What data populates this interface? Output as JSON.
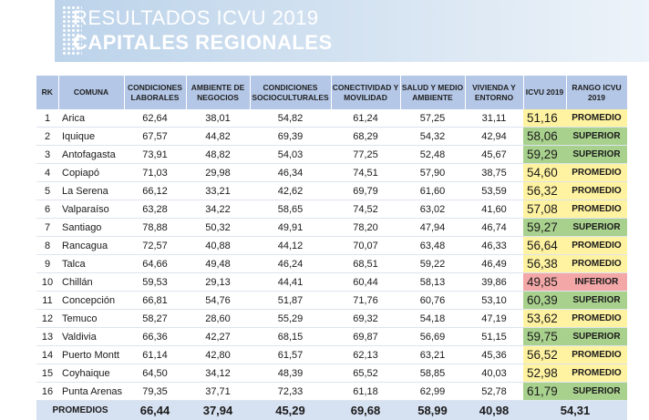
{
  "banner": {
    "title_line1": "RESULTADOS ICVU 2019",
    "title_line2": "CAPITALES REGIONALES"
  },
  "colors": {
    "header_bg": "#b4c7e7",
    "superior": "#a9d18e",
    "promedio": "#fff2a0",
    "inferior": "#f4a7a7",
    "average_row_bg": "#d6e1f1"
  },
  "table": {
    "headers": {
      "rk": "RK",
      "comuna": "COMUNA",
      "laborales": "CONDICIONES LABORALES",
      "negocios": "AMBIENTE DE NEGOCIOS",
      "socioculturales": "CONDICIONES SOCIOCULTURALES",
      "conectividad": "CONECTIVIDAD Y MOVILIDAD",
      "salud": "SALUD Y MEDIO AMBIENTE",
      "vivienda": "VIVIENDA Y ENTORNO",
      "icvu": "ICVU 2019",
      "rango": "RANGO ICVU 2019"
    },
    "rows": [
      {
        "rk": "1",
        "comuna": "Arica",
        "laborales": "62,64",
        "negocios": "38,01",
        "socio": "54,82",
        "conect": "61,24",
        "salud": "57,25",
        "vivienda": "31,11",
        "icvu": "51,16",
        "rango": "PROMEDIO"
      },
      {
        "rk": "2",
        "comuna": "Iquique",
        "laborales": "67,57",
        "negocios": "44,82",
        "socio": "69,39",
        "conect": "68,29",
        "salud": "54,32",
        "vivienda": "42,94",
        "icvu": "58,06",
        "rango": "SUPERIOR"
      },
      {
        "rk": "3",
        "comuna": "Antofagasta",
        "laborales": "73,91",
        "negocios": "48,82",
        "socio": "54,03",
        "conect": "77,25",
        "salud": "52,48",
        "vivienda": "45,67",
        "icvu": "59,29",
        "rango": "SUPERIOR"
      },
      {
        "rk": "4",
        "comuna": "Copiapó",
        "laborales": "71,03",
        "negocios": "29,98",
        "socio": "46,34",
        "conect": "74,51",
        "salud": "57,90",
        "vivienda": "38,75",
        "icvu": "54,60",
        "rango": "PROMEDIO"
      },
      {
        "rk": "5",
        "comuna": "La Serena",
        "laborales": "66,12",
        "negocios": "33,21",
        "socio": "42,62",
        "conect": "69,79",
        "salud": "61,60",
        "vivienda": "53,59",
        "icvu": "56,32",
        "rango": "PROMEDIO"
      },
      {
        "rk": "6",
        "comuna": "Valparaíso",
        "laborales": "63,28",
        "negocios": "34,22",
        "socio": "58,65",
        "conect": "74,52",
        "salud": "63,02",
        "vivienda": "41,60",
        "icvu": "57,08",
        "rango": "PROMEDIO"
      },
      {
        "rk": "7",
        "comuna": "Santiago",
        "laborales": "78,88",
        "negocios": "50,32",
        "socio": "49,91",
        "conect": "78,20",
        "salud": "47,94",
        "vivienda": "46,74",
        "icvu": "59,27",
        "rango": "SUPERIOR"
      },
      {
        "rk": "8",
        "comuna": "Rancagua",
        "laborales": "72,57",
        "negocios": "40,88",
        "socio": "44,12",
        "conect": "70,07",
        "salud": "63,48",
        "vivienda": "46,33",
        "icvu": "56,64",
        "rango": "PROMEDIO"
      },
      {
        "rk": "9",
        "comuna": "Talca",
        "laborales": "64,66",
        "negocios": "49,48",
        "socio": "46,24",
        "conect": "68,51",
        "salud": "59,22",
        "vivienda": "46,49",
        "icvu": "56,38",
        "rango": "PROMEDIO"
      },
      {
        "rk": "10",
        "comuna": "Chillán",
        "laborales": "59,53",
        "negocios": "29,13",
        "socio": "44,41",
        "conect": "60,44",
        "salud": "58,13",
        "vivienda": "39,86",
        "icvu": "49,85",
        "rango": "INFERIOR"
      },
      {
        "rk": "11",
        "comuna": "Concepción",
        "laborales": "66,81",
        "negocios": "54,76",
        "socio": "51,87",
        "conect": "71,76",
        "salud": "60,76",
        "vivienda": "53,10",
        "icvu": "60,39",
        "rango": "SUPERIOR"
      },
      {
        "rk": "12",
        "comuna": "Temuco",
        "laborales": "58,27",
        "negocios": "28,60",
        "socio": "55,29",
        "conect": "69,32",
        "salud": "54,18",
        "vivienda": "47,19",
        "icvu": "53,62",
        "rango": "PROMEDIO"
      },
      {
        "rk": "13",
        "comuna": "Valdivia",
        "laborales": "66,36",
        "negocios": "42,27",
        "socio": "68,15",
        "conect": "69,87",
        "salud": "56,69",
        "vivienda": "51,15",
        "icvu": "59,75",
        "rango": "SUPERIOR"
      },
      {
        "rk": "14",
        "comuna": "Puerto Montt",
        "laborales": "61,14",
        "negocios": "42,80",
        "socio": "61,57",
        "conect": "62,13",
        "salud": "63,21",
        "vivienda": "45,36",
        "icvu": "56,52",
        "rango": "PROMEDIO"
      },
      {
        "rk": "15",
        "comuna": "Coyhaique",
        "laborales": "64,50",
        "negocios": "34,12",
        "socio": "48,39",
        "conect": "65,52",
        "salud": "58,85",
        "vivienda": "40,03",
        "icvu": "52,98",
        "rango": "PROMEDIO"
      },
      {
        "rk": "16",
        "comuna": "Punta Arenas",
        "laborales": "79,35",
        "negocios": "37,71",
        "socio": "72,33",
        "conect": "61,18",
        "salud": "62,99",
        "vivienda": "52,78",
        "icvu": "61,79",
        "rango": "SUPERIOR"
      }
    ],
    "averages": {
      "label": "PROMEDIOS",
      "laborales": "66,44",
      "negocios": "37,94",
      "socio": "45,29",
      "conect": "69,68",
      "salud": "58,99",
      "vivienda": "40,98",
      "icvu": "54,31"
    }
  }
}
